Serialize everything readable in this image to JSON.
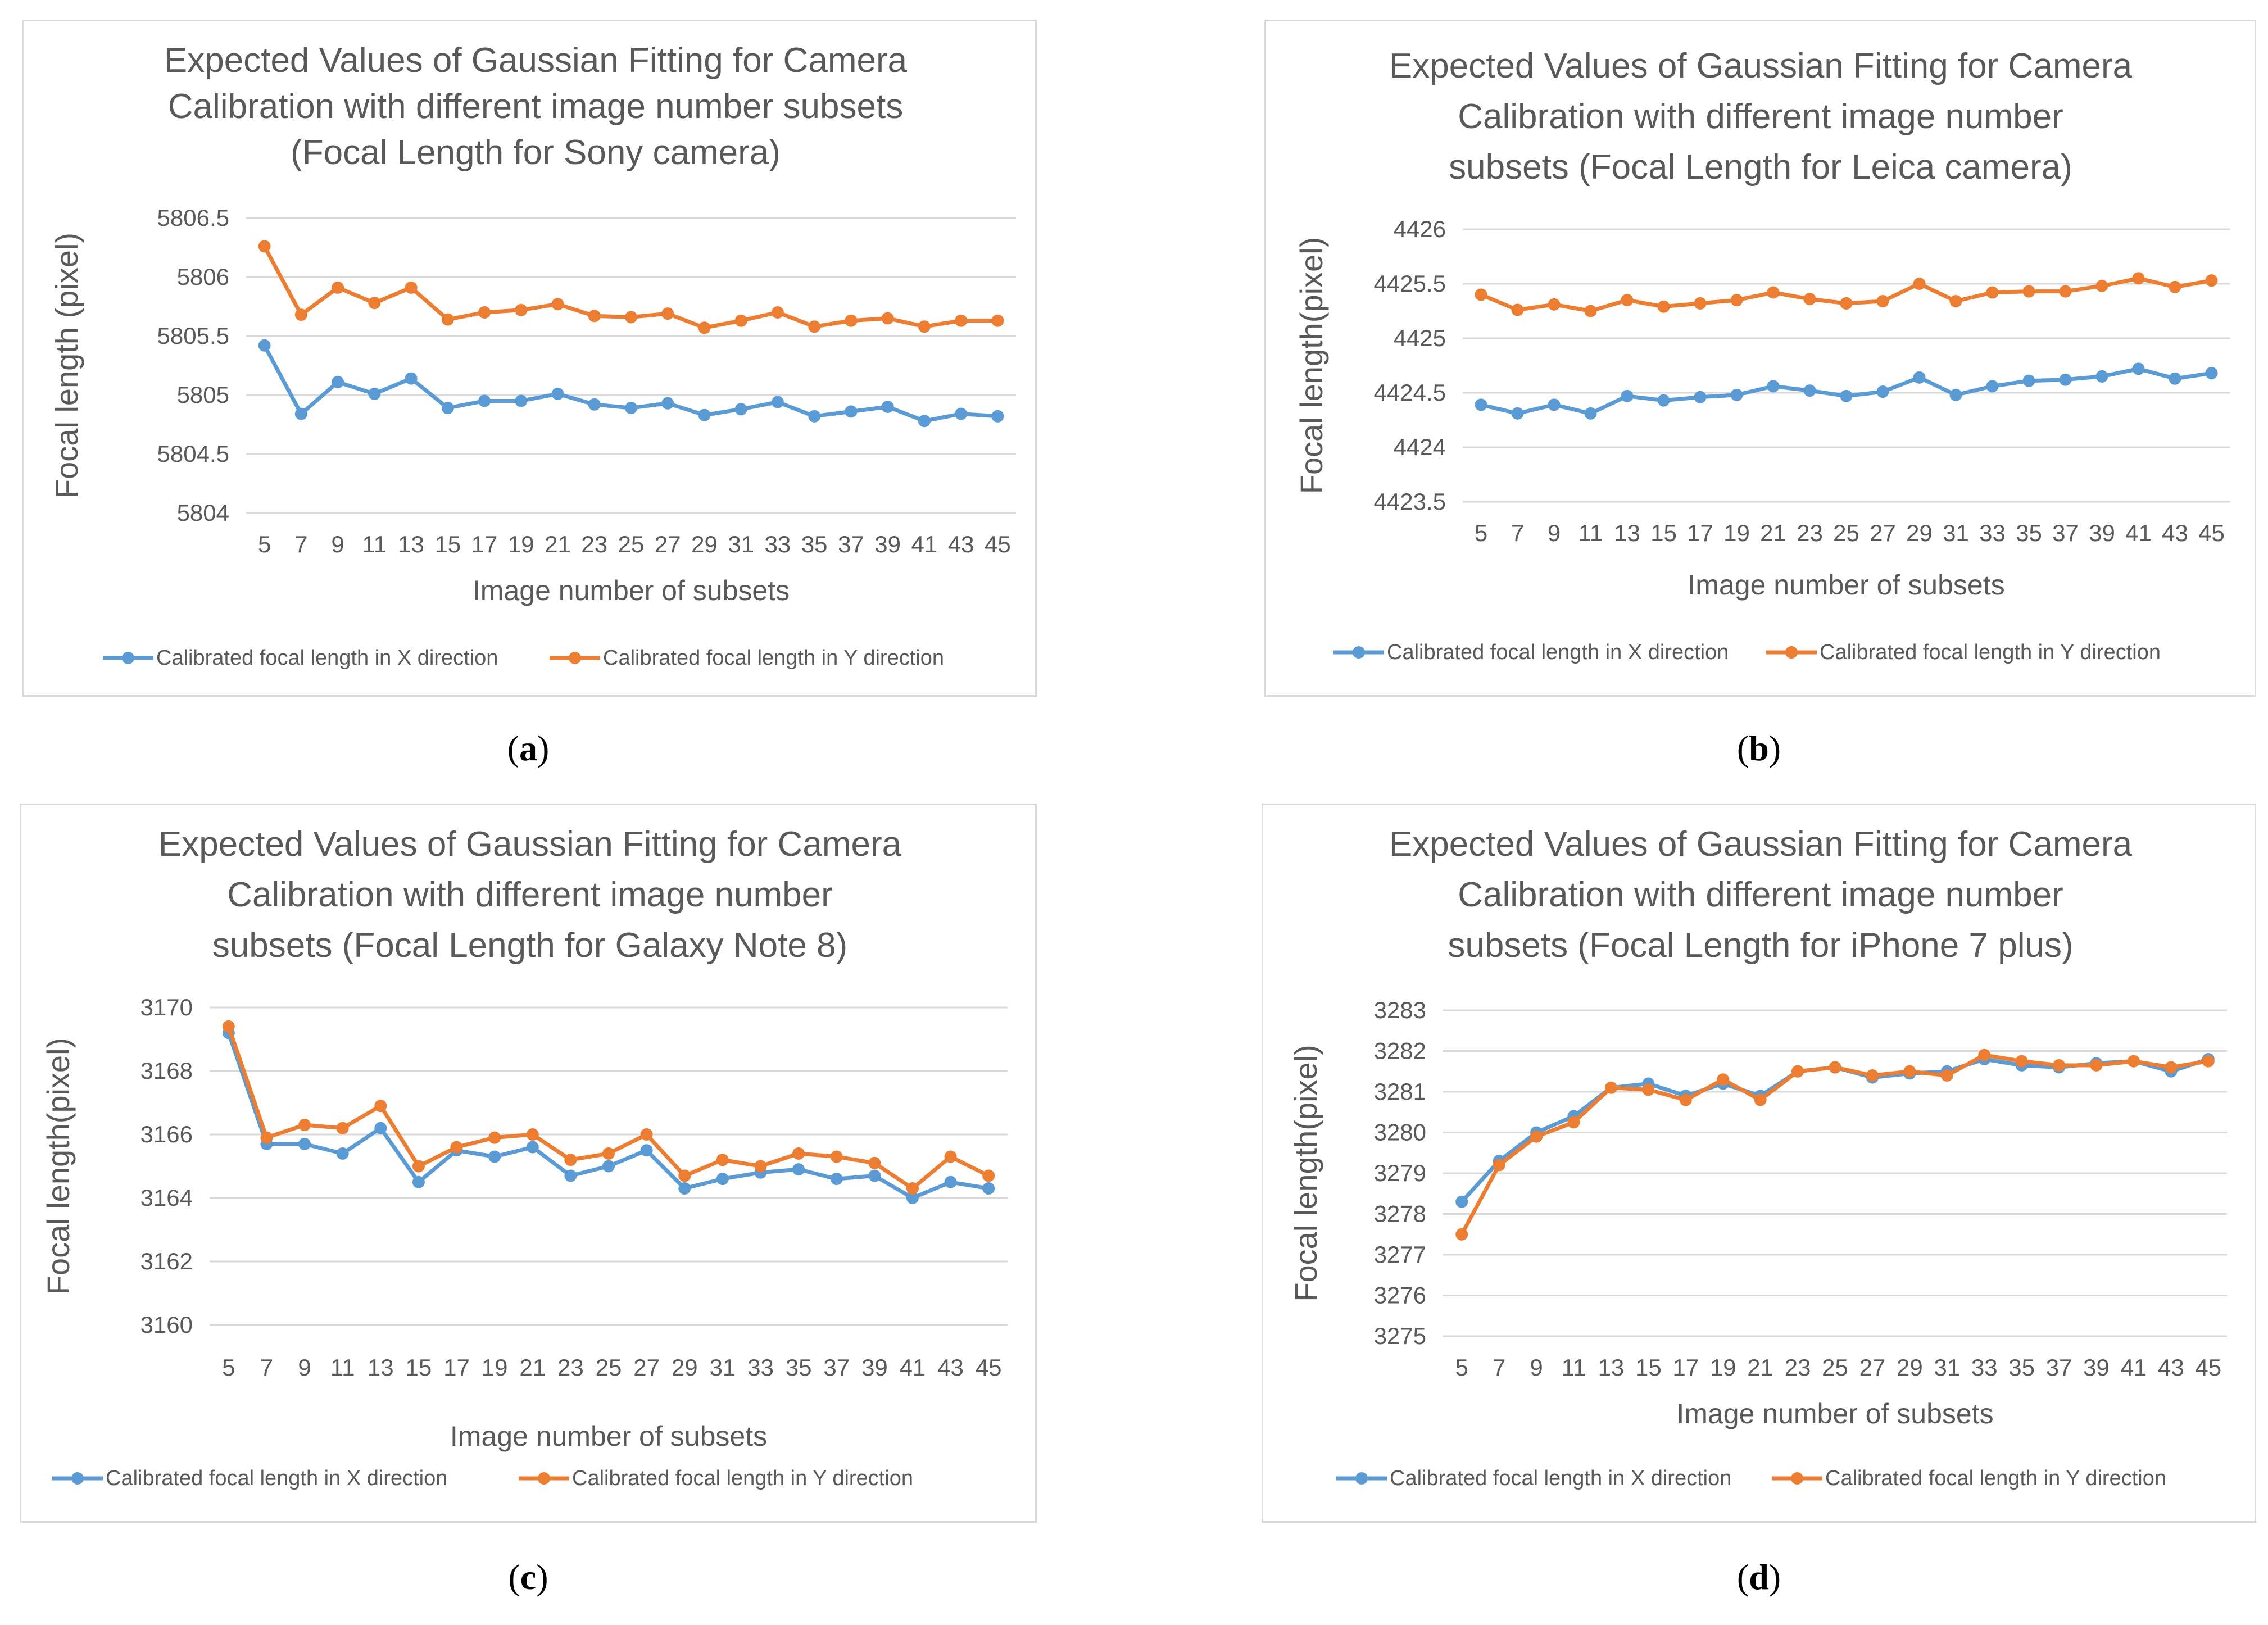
{
  "figures": [
    {
      "caption": "a"
    },
    {
      "caption": "b"
    },
    {
      "caption": "c"
    },
    {
      "caption": "d"
    }
  ],
  "colors": {
    "x_series": "#5b9bd5",
    "y_series": "#ed7d31",
    "grid": "#d9d9d9",
    "text": "#595959"
  },
  "chart_data": [
    {
      "type": "line",
      "title_lines": [
        "Expected Values of Gaussian Fitting for Camera",
        "Calibration with different image number subsets",
        "(Focal Length for Sony camera)"
      ],
      "xlabel": "Image number of subsets",
      "ylabel": "Focal length (pixel)",
      "ylim": [
        5804,
        5806.5
      ],
      "yticks": [
        "5804",
        "5804.5",
        "5805",
        "5805.5",
        "5806",
        "5806.5"
      ],
      "categories": [
        "5",
        "7",
        "9",
        "11",
        "13",
        "15",
        "17",
        "19",
        "21",
        "23",
        "25",
        "27",
        "29",
        "31",
        "33",
        "35",
        "37",
        "39",
        "41",
        "43",
        "45"
      ],
      "legend": "bottom",
      "series": [
        {
          "name": "Calibrated focal length in X direction",
          "values": [
            5805.42,
            5804.84,
            5805.11,
            5805.01,
            5805.14,
            5804.89,
            5804.95,
            5804.95,
            5805.01,
            5804.92,
            5804.89,
            5804.93,
            5804.83,
            5804.88,
            5804.94,
            5804.82,
            5804.86,
            5804.9,
            5804.78,
            5804.84,
            5804.82
          ]
        },
        {
          "name": "Calibrated focal length in Y direction",
          "values": [
            5806.26,
            5805.68,
            5805.91,
            5805.78,
            5805.91,
            5805.64,
            5805.7,
            5805.72,
            5805.77,
            5805.67,
            5805.66,
            5805.69,
            5805.57,
            5805.63,
            5805.7,
            5805.58,
            5805.63,
            5805.65,
            5805.58,
            5805.63,
            5805.63
          ]
        }
      ]
    },
    {
      "type": "line",
      "title_lines": [
        "Expected Values of Gaussian Fitting for Camera",
        "Calibration with different image number",
        "subsets (Focal Length for Leica camera)"
      ],
      "xlabel": "Image number of subsets",
      "ylabel": "Focal length(pixel)",
      "ylim": [
        4423.5,
        4426
      ],
      "yticks": [
        "4423.5",
        "4424",
        "4424.5",
        "4425",
        "4425.5",
        "4426"
      ],
      "categories": [
        "5",
        "7",
        "9",
        "11",
        "13",
        "15",
        "17",
        "19",
        "21",
        "23",
        "25",
        "27",
        "29",
        "31",
        "33",
        "35",
        "37",
        "39",
        "41",
        "43",
        "45"
      ],
      "legend": "bottom",
      "series": [
        {
          "name": "Calibrated focal length in X direction",
          "values": [
            4424.39,
            4424.31,
            4424.39,
            4424.31,
            4424.47,
            4424.43,
            4424.46,
            4424.48,
            4424.56,
            4424.52,
            4424.47,
            4424.51,
            4424.64,
            4424.48,
            4424.56,
            4424.61,
            4424.62,
            4424.65,
            4424.72,
            4424.63,
            4424.68
          ]
        },
        {
          "name": "Calibrated focal length in Y direction",
          "values": [
            4425.4,
            4425.26,
            4425.31,
            4425.25,
            4425.35,
            4425.29,
            4425.32,
            4425.35,
            4425.42,
            4425.36,
            4425.32,
            4425.34,
            4425.5,
            4425.34,
            4425.42,
            4425.43,
            4425.43,
            4425.48,
            4425.55,
            4425.47,
            4425.53
          ]
        }
      ]
    },
    {
      "type": "line",
      "title_lines": [
        "Expected Values of Gaussian Fitting for Camera",
        "Calibration with different image number",
        "subsets (Focal Length for Galaxy Note 8)"
      ],
      "xlabel": "Image number of subsets",
      "ylabel": "Focal length(pixel)",
      "ylim": [
        3160,
        3170
      ],
      "yticks": [
        "3160",
        "3162",
        "3164",
        "3166",
        "3168",
        "3170"
      ],
      "categories": [
        "5",
        "7",
        "9",
        "11",
        "13",
        "15",
        "17",
        "19",
        "21",
        "23",
        "25",
        "27",
        "29",
        "31",
        "33",
        "35",
        "37",
        "39",
        "41",
        "43",
        "45"
      ],
      "legend": "bottom",
      "series": [
        {
          "name": "Calibrated focal length in X direction",
          "values": [
            3169.2,
            3165.7,
            3165.7,
            3165.4,
            3166.2,
            3164.5,
            3165.5,
            3165.3,
            3165.6,
            3164.7,
            3165.0,
            3165.5,
            3164.3,
            3164.6,
            3164.8,
            3164.9,
            3164.6,
            3164.7,
            3164.0,
            3164.5,
            3164.3
          ]
        },
        {
          "name": "Calibrated focal length in Y direction",
          "values": [
            3169.4,
            3165.9,
            3166.3,
            3166.2,
            3166.9,
            3165.0,
            3165.6,
            3165.9,
            3166.0,
            3165.2,
            3165.4,
            3166.0,
            3164.7,
            3165.2,
            3165.0,
            3165.4,
            3165.3,
            3165.1,
            3164.3,
            3165.3,
            3164.7
          ]
        }
      ]
    },
    {
      "type": "line",
      "title_lines": [
        "Expected Values of Gaussian Fitting for Camera",
        "Calibration with different image number",
        "subsets (Focal Length for iPhone 7 plus)"
      ],
      "xlabel": "Image number of subsets",
      "ylabel": "Focal length(pixel)",
      "ylim": [
        3275,
        3283
      ],
      "yticks": [
        "3275",
        "3276",
        "3277",
        "3278",
        "3279",
        "3280",
        "3281",
        "3282",
        "3283"
      ],
      "categories": [
        "5",
        "7",
        "9",
        "11",
        "13",
        "15",
        "17",
        "19",
        "21",
        "23",
        "25",
        "27",
        "29",
        "31",
        "33",
        "35",
        "37",
        "39",
        "41",
        "43",
        "45"
      ],
      "legend": "bottom",
      "series": [
        {
          "name": "Calibrated focal length in X direction",
          "values": [
            3278.3,
            3279.3,
            3280.0,
            3280.4,
            3281.1,
            3281.2,
            3280.9,
            3281.2,
            3280.9,
            3281.5,
            3281.6,
            3281.35,
            3281.45,
            3281.5,
            3281.8,
            3281.65,
            3281.6,
            3281.7,
            3281.75,
            3281.5,
            3281.8
          ]
        },
        {
          "name": "Calibrated focal length in Y direction",
          "values": [
            3277.5,
            3279.2,
            3279.9,
            3280.25,
            3281.1,
            3281.05,
            3280.8,
            3281.3,
            3280.8,
            3281.5,
            3281.6,
            3281.4,
            3281.5,
            3281.4,
            3281.9,
            3281.75,
            3281.65,
            3281.65,
            3281.75,
            3281.6,
            3281.75
          ]
        }
      ]
    }
  ]
}
